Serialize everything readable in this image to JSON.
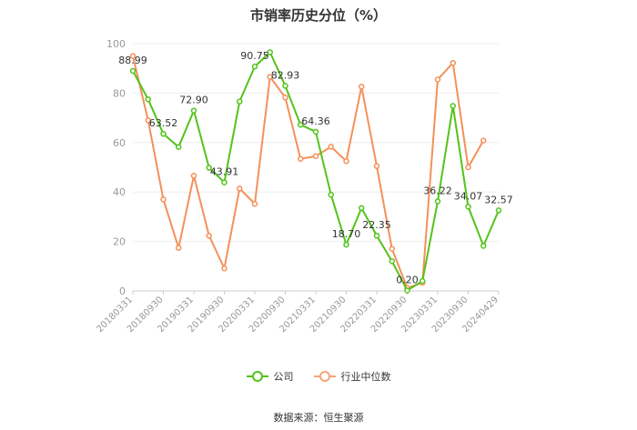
{
  "chart_data": {
    "type": "line",
    "title": "市销率历史分位（%）",
    "ylim": [
      0,
      100
    ],
    "yticks": [
      0,
      20,
      40,
      60,
      80,
      100
    ],
    "x_tick_labels": [
      "20180331",
      "20180930",
      "20190331",
      "20190930",
      "20200331",
      "20200930",
      "20210331",
      "20210930",
      "20220331",
      "20220930",
      "20230331",
      "20230930",
      "20240429"
    ],
    "grid": true,
    "legend_position": "bottom",
    "series": [
      {
        "name": "公司",
        "color": "#52c41a",
        "values": [
          88.99,
          77.5,
          63.52,
          58.2,
          72.9,
          49.8,
          43.91,
          76.6,
          90.75,
          96.5,
          82.93,
          67.2,
          64.36,
          38.9,
          18.7,
          33.5,
          22.35,
          12.0,
          0.2,
          4.0,
          36.22,
          74.8,
          34.07,
          18.2,
          32.57
        ]
      },
      {
        "name": "行业中位数",
        "color": "#f4905a",
        "values": [
          95.0,
          69.0,
          37.0,
          17.4,
          46.6,
          22.3,
          9.1,
          41.4,
          35.2,
          86.6,
          78.2,
          53.4,
          54.5,
          58.3,
          52.5,
          82.6,
          50.5,
          17.0,
          1.2,
          3.3,
          85.5,
          92.2,
          50.0,
          60.8,
          null
        ]
      }
    ],
    "data_labels": [
      {
        "series": 0,
        "index": 0,
        "text": "88.99"
      },
      {
        "series": 0,
        "index": 2,
        "text": "63.52"
      },
      {
        "series": 0,
        "index": 4,
        "text": "72.90"
      },
      {
        "series": 0,
        "index": 6,
        "text": "43.91"
      },
      {
        "series": 0,
        "index": 8,
        "text": "90.75"
      },
      {
        "series": 0,
        "index": 10,
        "text": "82.93"
      },
      {
        "series": 0,
        "index": 12,
        "text": "64.36"
      },
      {
        "series": 0,
        "index": 14,
        "text": "18.70"
      },
      {
        "series": 0,
        "index": 16,
        "text": "22.35"
      },
      {
        "series": 0,
        "index": 18,
        "text": "0.20"
      },
      {
        "series": 0,
        "index": 20,
        "text": "36.22"
      },
      {
        "series": 0,
        "index": 22,
        "text": "34.07"
      },
      {
        "series": 0,
        "index": 24,
        "text": "32.57"
      }
    ]
  },
  "legend": {
    "company": "公司",
    "industry": "行业中位数"
  },
  "source": "数据来源：恒生聚源"
}
